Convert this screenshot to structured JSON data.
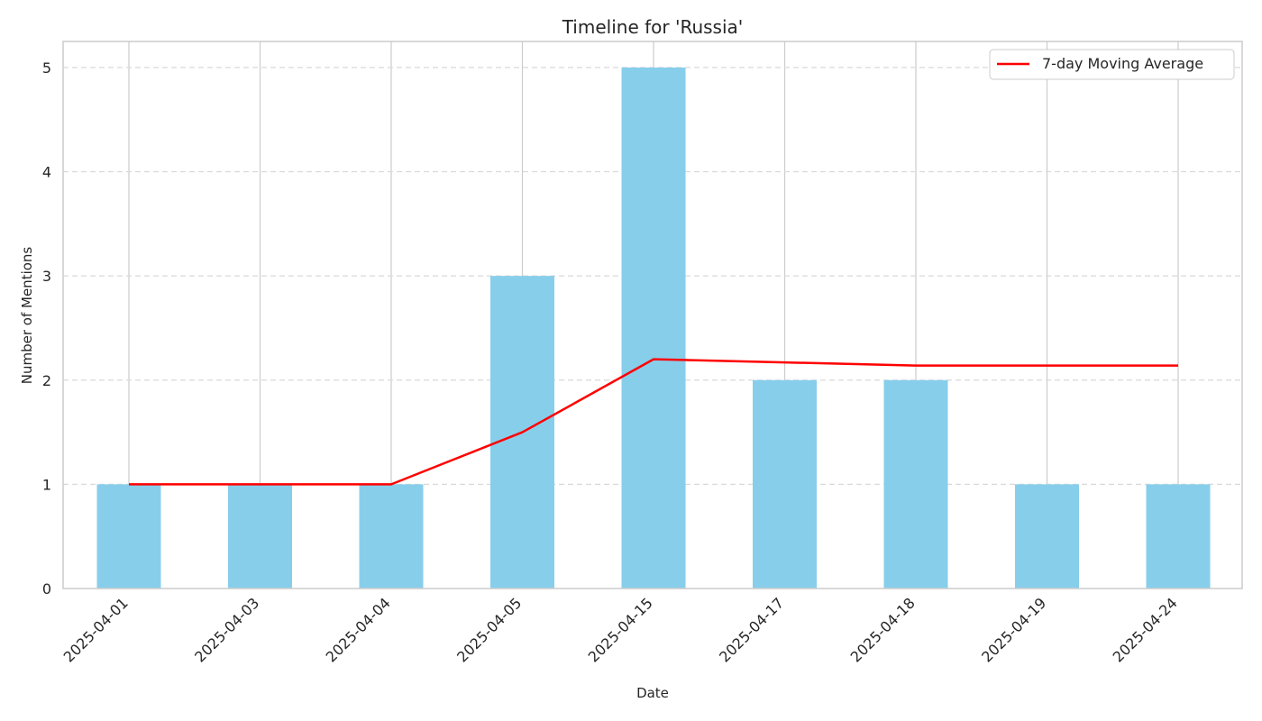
{
  "chart_data": {
    "type": "bar",
    "title": "Timeline for 'Russia'",
    "xlabel": "Date",
    "ylabel": "Number of Mentions",
    "categories": [
      "2025-04-01",
      "2025-04-03",
      "2025-04-04",
      "2025-04-05",
      "2025-04-15",
      "2025-04-17",
      "2025-04-18",
      "2025-04-19",
      "2025-04-24"
    ],
    "values": [
      1,
      1,
      1,
      3,
      5,
      2,
      2,
      1,
      1
    ],
    "line_series": {
      "name": "7-day Moving Average",
      "values": [
        1.0,
        1.0,
        1.0,
        1.5,
        2.2,
        2.17,
        2.14,
        2.14,
        2.14
      ]
    },
    "ylim": [
      0,
      5.25
    ],
    "yticks": [
      0,
      1,
      2,
      3,
      4,
      5
    ],
    "grid": true,
    "legend_position": "top-right",
    "colors": {
      "bar": "#87ceeb",
      "line": "#ff0000",
      "grid": "#d9d9d9",
      "axes": "#cccccc",
      "text": "#262626"
    }
  }
}
